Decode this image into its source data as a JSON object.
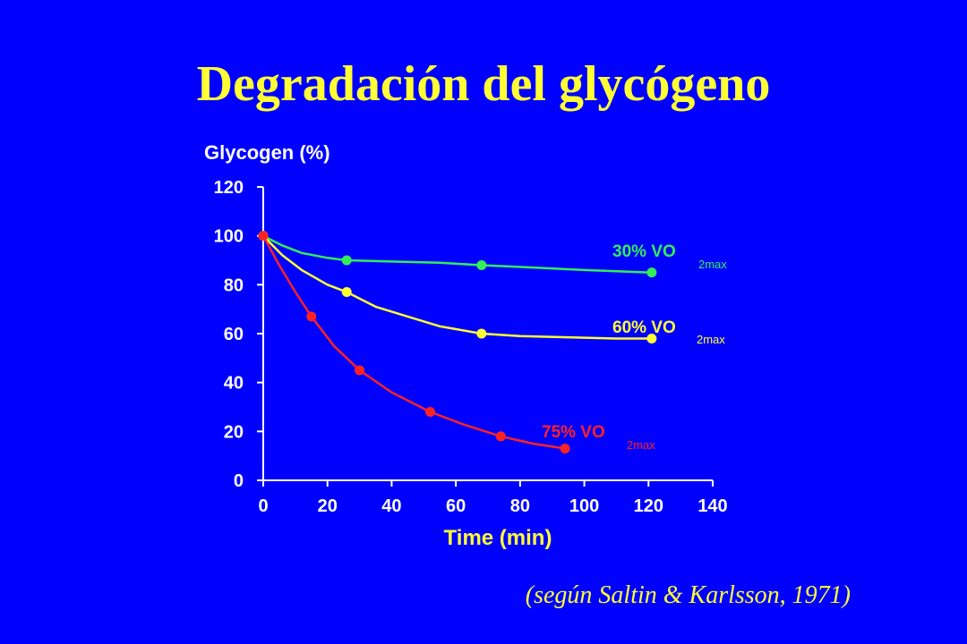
{
  "title": "Degradación del glycógeno",
  "citation": "(según Saltin & Karlsson, 1971)",
  "chart_data": {
    "type": "line",
    "ylabel": "Glycogen (%)",
    "xlabel": "Time (min)",
    "xlim": [
      0,
      140
    ],
    "ylim": [
      0,
      120
    ],
    "xticks": [
      0,
      20,
      40,
      60,
      80,
      100,
      120,
      140
    ],
    "yticks": [
      0,
      20,
      40,
      60,
      80,
      100,
      120
    ],
    "grid": false,
    "series": [
      {
        "name": "30% VO",
        "subscript": "2max",
        "color": "#33EE55",
        "points": [
          [
            0,
            100
          ],
          [
            26,
            90
          ],
          [
            68,
            88
          ],
          [
            121,
            85
          ]
        ],
        "curve": [
          [
            0,
            100
          ],
          [
            6,
            96
          ],
          [
            12,
            93
          ],
          [
            20,
            91
          ],
          [
            26,
            90
          ],
          [
            40,
            89.5
          ],
          [
            55,
            89
          ],
          [
            68,
            88
          ],
          [
            85,
            87
          ],
          [
            100,
            86
          ],
          [
            121,
            85
          ]
        ]
      },
      {
        "name": "60% VO",
        "subscript": "2max",
        "color": "#FFFF33",
        "points": [
          [
            0,
            100
          ],
          [
            26,
            77
          ],
          [
            68,
            60
          ],
          [
            121,
            58
          ]
        ],
        "curve": [
          [
            0,
            100
          ],
          [
            6,
            92
          ],
          [
            12,
            86
          ],
          [
            20,
            80
          ],
          [
            26,
            77
          ],
          [
            35,
            71
          ],
          [
            45,
            67
          ],
          [
            55,
            63
          ],
          [
            68,
            60
          ],
          [
            80,
            59
          ],
          [
            95,
            58.5
          ],
          [
            110,
            58
          ],
          [
            121,
            58
          ]
        ]
      },
      {
        "name": "75% VO",
        "subscript": "2max",
        "color": "#FF2222",
        "points": [
          [
            0,
            100
          ],
          [
            15,
            67
          ],
          [
            30,
            45
          ],
          [
            52,
            28
          ],
          [
            74,
            18
          ],
          [
            94,
            13
          ]
        ],
        "curve": [
          [
            0,
            100
          ],
          [
            5,
            88
          ],
          [
            10,
            77
          ],
          [
            15,
            67
          ],
          [
            22,
            55
          ],
          [
            30,
            45
          ],
          [
            40,
            36
          ],
          [
            52,
            28
          ],
          [
            62,
            23
          ],
          [
            74,
            18
          ],
          [
            84,
            15
          ],
          [
            94,
            13
          ]
        ]
      }
    ]
  }
}
